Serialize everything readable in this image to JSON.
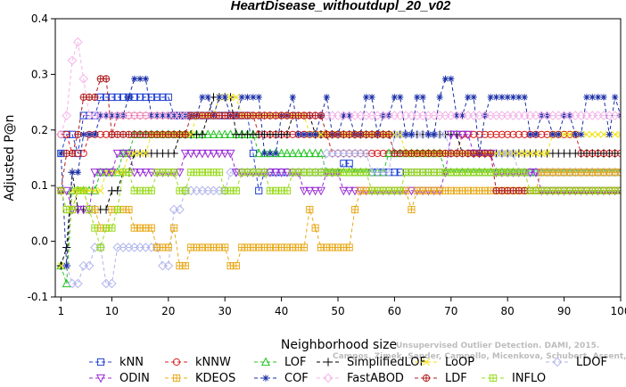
{
  "chart_data": {
    "type": "line",
    "title": "HeartDisease_withoutdupl_20_v02",
    "xlabel": "Neighborhood size",
    "ylabel": "Adjusted P@n",
    "xlim": [
      0,
      100
    ],
    "ylim": [
      -0.1,
      0.4
    ],
    "xticks": [
      1,
      10,
      20,
      30,
      40,
      50,
      60,
      70,
      80,
      90,
      100
    ],
    "yticks": [
      -0.1,
      0.0,
      0.1,
      0.2,
      0.3,
      0.4
    ],
    "grid": false,
    "legend_position": "bottom",
    "credit_lines": [
      "Unsupervised Outlier Detection. DAMI, 2015.",
      "Campos, Zimek, Sander, Campello, Micenkova, Schubert, Assent, Houle"
    ],
    "series": [
      {
        "name": "kNN",
        "color": "#1f3fd1",
        "marker": "square",
        "points": [
          [
            1,
            0.158
          ],
          [
            2,
            0.192
          ],
          [
            4,
            0.158
          ],
          [
            5,
            0.226
          ],
          [
            7,
            0.226
          ],
          [
            8,
            0.259
          ],
          [
            20,
            0.259
          ],
          [
            21,
            0.226
          ],
          [
            35,
            0.158
          ],
          [
            36,
            0.091
          ],
          [
            37,
            0.124
          ],
          [
            50,
            0.124
          ],
          [
            51,
            0.14
          ],
          [
            53,
            0.124
          ],
          [
            100,
            0.124
          ]
        ]
      },
      {
        "name": "kNNW",
        "color": "#d62020",
        "marker": "circle",
        "points": [
          [
            1,
            0.192
          ],
          [
            3,
            0.158
          ],
          [
            6,
            0.192
          ],
          [
            10,
            0.192
          ],
          [
            11,
            0.226
          ],
          [
            35,
            0.226
          ],
          [
            36,
            0.192
          ],
          [
            48,
            0.192
          ],
          [
            49,
            0.158
          ],
          [
            70,
            0.158
          ],
          [
            72,
            0.192
          ],
          [
            92,
            0.192
          ],
          [
            93,
            0.158
          ],
          [
            100,
            0.158
          ]
        ]
      },
      {
        "name": "LOF",
        "color": "#22c322",
        "marker": "triangle",
        "points": [
          [
            1,
            -0.044
          ],
          [
            2,
            -0.076
          ],
          [
            3,
            0.091
          ],
          [
            5,
            0.091
          ],
          [
            8,
            0.124
          ],
          [
            12,
            0.158
          ],
          [
            14,
            0.192
          ],
          [
            36,
            0.158
          ],
          [
            47,
            0.158
          ],
          [
            48,
            0.124
          ],
          [
            58,
            0.124
          ],
          [
            59,
            0.158
          ],
          [
            68,
            0.158
          ],
          [
            69,
            0.124
          ],
          [
            100,
            0.124
          ]
        ]
      },
      {
        "name": "SimplifiedLOF",
        "color": "#000000",
        "marker": "plus",
        "points": [
          [
            1,
            -0.044
          ],
          [
            2,
            -0.011
          ],
          [
            3,
            0.124
          ],
          [
            4,
            0.057
          ],
          [
            9,
            0.057
          ],
          [
            10,
            0.091
          ],
          [
            12,
            0.124
          ],
          [
            14,
            0.158
          ],
          [
            20,
            0.158
          ],
          [
            22,
            0.192
          ],
          [
            27,
            0.226
          ],
          [
            28,
            0.259
          ],
          [
            30,
            0.259
          ],
          [
            32,
            0.192
          ],
          [
            40,
            0.192
          ],
          [
            42,
            0.226
          ],
          [
            46,
            0.192
          ],
          [
            55,
            0.192
          ],
          [
            70,
            0.192
          ],
          [
            72,
            0.158
          ],
          [
            100,
            0.158
          ]
        ]
      },
      {
        "name": "LoOP",
        "color": "#f2e20e",
        "marker": "x",
        "points": [
          [
            1,
            -0.044
          ],
          [
            3,
            0.091
          ],
          [
            6,
            0.091
          ],
          [
            9,
            0.124
          ],
          [
            13,
            0.158
          ],
          [
            17,
            0.192
          ],
          [
            25,
            0.226
          ],
          [
            29,
            0.259
          ],
          [
            33,
            0.226
          ],
          [
            45,
            0.192
          ],
          [
            55,
            0.192
          ],
          [
            62,
            0.158
          ],
          [
            80,
            0.158
          ],
          [
            88,
            0.192
          ],
          [
            100,
            0.192
          ]
        ]
      },
      {
        "name": "LDOF",
        "color": "#b2b6ec",
        "marker": "diamond",
        "points": [
          [
            2,
            -0.044
          ],
          [
            3,
            -0.076
          ],
          [
            5,
            -0.044
          ],
          [
            7,
            -0.011
          ],
          [
            9,
            -0.076
          ],
          [
            11,
            -0.011
          ],
          [
            17,
            -0.011
          ],
          [
            19,
            -0.044
          ],
          [
            21,
            0.057
          ],
          [
            23,
            0.091
          ],
          [
            30,
            0.091
          ],
          [
            31,
            0.124
          ],
          [
            46,
            0.124
          ],
          [
            48,
            0.158
          ],
          [
            54,
            0.158
          ],
          [
            56,
            0.124
          ],
          [
            60,
            0.192
          ],
          [
            70,
            0.158
          ],
          [
            82,
            0.124
          ],
          [
            100,
            0.124
          ]
        ]
      },
      {
        "name": "ODIN",
        "color": "#9a2bd6",
        "marker": "down-triangle",
        "points": [
          [
            1,
            0.091
          ],
          [
            3,
            0.057
          ],
          [
            5,
            0.057
          ],
          [
            7,
            0.124
          ],
          [
            9,
            0.124
          ],
          [
            11,
            0.158
          ],
          [
            14,
            0.124
          ],
          [
            21,
            0.124
          ],
          [
            23,
            0.158
          ],
          [
            30,
            0.158
          ],
          [
            32,
            0.124
          ],
          [
            42,
            0.124
          ],
          [
            44,
            0.091
          ],
          [
            48,
            0.124
          ],
          [
            51,
            0.091
          ],
          [
            65,
            0.091
          ],
          [
            69,
            0.124
          ],
          [
            70,
            0.192
          ],
          [
            74,
            0.158
          ],
          [
            78,
            0.124
          ],
          [
            86,
            0.091
          ],
          [
            100,
            0.091
          ]
        ]
      },
      {
        "name": "KDEOS",
        "color": "#e8aa1c",
        "marker": "hash-square",
        "points": [
          [
            2,
            0.057
          ],
          [
            4,
            0.091
          ],
          [
            5,
            0.091
          ],
          [
            6,
            0.057
          ],
          [
            8,
            0.024
          ],
          [
            10,
            0.057
          ],
          [
            13,
            0.057
          ],
          [
            14,
            0.024
          ],
          [
            17,
            0.024
          ],
          [
            18,
            -0.011
          ],
          [
            21,
            0.024
          ],
          [
            22,
            -0.044
          ],
          [
            24,
            -0.011
          ],
          [
            30,
            -0.011
          ],
          [
            31,
            -0.044
          ],
          [
            33,
            -0.011
          ],
          [
            44,
            -0.011
          ],
          [
            45,
            0.057
          ],
          [
            46,
            0.024
          ],
          [
            47,
            -0.011
          ],
          [
            51,
            -0.011
          ],
          [
            53,
            0.057
          ],
          [
            54,
            0.091
          ],
          [
            62,
            0.091
          ],
          [
            63,
            0.057
          ],
          [
            64,
            0.091
          ],
          [
            70,
            0.091
          ],
          [
            80,
            0.091
          ],
          [
            86,
            0.124
          ],
          [
            100,
            0.124
          ]
        ]
      },
      {
        "name": "COF",
        "color": "#1a2fa8",
        "marker": "asterisk",
        "points": [
          [
            1,
            0.158
          ],
          [
            2,
            -0.044
          ],
          [
            3,
            0.124
          ],
          [
            5,
            0.192
          ],
          [
            8,
            0.226
          ],
          [
            10,
            0.226
          ],
          [
            13,
            0.259
          ],
          [
            14,
            0.292
          ],
          [
            16,
            0.292
          ],
          [
            17,
            0.226
          ],
          [
            25,
            0.226
          ],
          [
            26,
            0.259
          ],
          [
            28,
            0.226
          ],
          [
            29,
            0.259
          ],
          [
            31,
            0.226
          ],
          [
            33,
            0.259
          ],
          [
            35,
            0.259
          ],
          [
            37,
            0.158
          ],
          [
            39,
            0.158
          ],
          [
            40,
            0.226
          ],
          [
            42,
            0.259
          ],
          [
            43,
            0.192
          ],
          [
            47,
            0.226
          ],
          [
            48,
            0.259
          ],
          [
            49,
            0.192
          ],
          [
            51,
            0.226
          ],
          [
            53,
            0.192
          ],
          [
            55,
            0.259
          ],
          [
            57,
            0.192
          ],
          [
            58,
            0.226
          ],
          [
            60,
            0.259
          ],
          [
            62,
            0.192
          ],
          [
            64,
            0.259
          ],
          [
            66,
            0.192
          ],
          [
            68,
            0.259
          ],
          [
            69,
            0.292
          ],
          [
            71,
            0.226
          ],
          [
            73,
            0.259
          ],
          [
            75,
            0.158
          ],
          [
            76,
            0.226
          ],
          [
            77,
            0.259
          ],
          [
            83,
            0.259
          ],
          [
            84,
            0.192
          ],
          [
            86,
            0.226
          ],
          [
            88,
            0.192
          ],
          [
            90,
            0.226
          ],
          [
            92,
            0.192
          ],
          [
            94,
            0.259
          ],
          [
            96,
            0.259
          ],
          [
            98,
            0.192
          ],
          [
            99,
            0.259
          ],
          [
            100,
            0.226
          ]
        ]
      },
      {
        "name": "FastABOD",
        "color": "#f4b4e8",
        "marker": "diamond",
        "points": [
          [
            1,
            0.192
          ],
          [
            2,
            0.226
          ],
          [
            3,
            0.325
          ],
          [
            4,
            0.358
          ],
          [
            5,
            0.292
          ],
          [
            6,
            0.226
          ],
          [
            8,
            0.226
          ],
          [
            10,
            0.226
          ],
          [
            100,
            0.226
          ]
        ]
      },
      {
        "name": "LDF",
        "color": "#b01c1c",
        "marker": "circle-plus",
        "points": [
          [
            1,
            0.091
          ],
          [
            2,
            0.158
          ],
          [
            4,
            0.192
          ],
          [
            5,
            0.259
          ],
          [
            8,
            0.292
          ],
          [
            10,
            0.192
          ],
          [
            12,
            0.192
          ],
          [
            18,
            0.192
          ],
          [
            24,
            0.226
          ],
          [
            40,
            0.226
          ],
          [
            48,
            0.192
          ],
          [
            60,
            0.158
          ],
          [
            76,
            0.158
          ],
          [
            78,
            0.091
          ],
          [
            100,
            0.091
          ]
        ]
      },
      {
        "name": "INFLO",
        "color": "#9adb1e",
        "marker": "hash-square",
        "points": [
          [
            1,
            0.091
          ],
          [
            2,
            0.057
          ],
          [
            3,
            0.057
          ],
          [
            4,
            0.091
          ],
          [
            6,
            0.057
          ],
          [
            7,
            0.024
          ],
          [
            8,
            -0.011
          ],
          [
            9,
            0.024
          ],
          [
            11,
            0.057
          ],
          [
            12,
            0.124
          ],
          [
            14,
            0.091
          ],
          [
            16,
            0.091
          ],
          [
            18,
            0.124
          ],
          [
            20,
            0.124
          ],
          [
            22,
            0.091
          ],
          [
            24,
            0.124
          ],
          [
            28,
            0.124
          ],
          [
            30,
            0.091
          ],
          [
            33,
            0.124
          ],
          [
            36,
            0.124
          ],
          [
            38,
            0.091
          ],
          [
            40,
            0.091
          ],
          [
            42,
            0.124
          ],
          [
            44,
            0.124
          ],
          [
            54,
            0.124
          ],
          [
            56,
            0.091
          ],
          [
            60,
            0.091
          ],
          [
            62,
            0.124
          ],
          [
            80,
            0.124
          ],
          [
            84,
            0.091
          ],
          [
            100,
            0.091
          ]
        ]
      }
    ]
  }
}
